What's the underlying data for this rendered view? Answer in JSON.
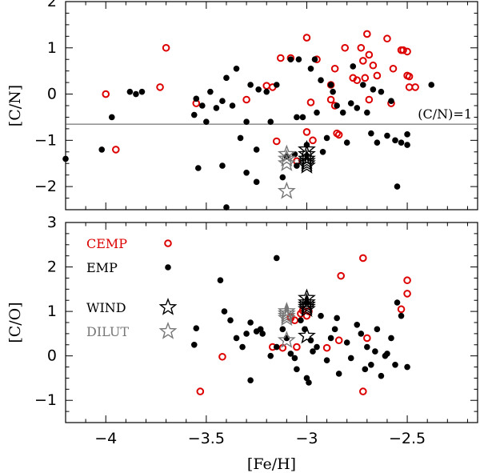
{
  "chart_data": [
    {
      "type": "scatter",
      "panel": "top",
      "ylabel": "[C/N]",
      "xlim": [
        -4.2,
        -2.15
      ],
      "ylim": [
        -2.5,
        2.0
      ],
      "xticks": [
        -4,
        -3.5,
        -3,
        -2.5
      ],
      "yticks": [
        -2,
        -1,
        0,
        1,
        2
      ],
      "ytick_labels": [
        "−2",
        "−1",
        "0",
        "1",
        "2"
      ],
      "reference_line": {
        "y": -0.65,
        "label": "(C/N)=1"
      },
      "series": [
        {
          "name": "CEMP",
          "marker": "open-circle",
          "color": "#dd0000",
          "x": [
            -4.0,
            -3.95,
            -3.7,
            -3.73,
            -3.55,
            -3.3,
            -3.2,
            -3.17,
            -3.13,
            -3.08,
            -3.0,
            -2.98,
            -2.95,
            -2.88,
            -2.86,
            -2.85,
            -2.84,
            -2.81,
            -2.77,
            -2.75,
            -2.73,
            -2.71,
            -2.7,
            -2.69,
            -2.67,
            -2.65,
            -2.6,
            -2.57,
            -2.53,
            -2.52,
            -2.5,
            -2.5,
            -2.49,
            -2.49,
            -2.46,
            -2.97,
            -3.15,
            -2.86,
            -3.05,
            -2.69,
            -2.58,
            -2.88,
            -3.0,
            -2.72
          ],
          "y": [
            0.0,
            -1.2,
            1.0,
            0.15,
            -0.2,
            -0.12,
            0.18,
            0.15,
            0.78,
            0.78,
            1.22,
            -0.18,
            0.75,
            -0.12,
            -0.25,
            -0.85,
            -0.88,
            1.0,
            0.35,
            0.3,
            1.0,
            0.35,
            1.3,
            0.85,
            0.62,
            0.4,
            1.2,
            0.55,
            0.95,
            0.95,
            0.92,
            0.4,
            0.38,
            0.15,
            0.15,
            -1.0,
            -1.02,
            0.55,
            -1.45,
            -0.12,
            -0.2,
            0.2,
            -0.82,
            0.72
          ]
        },
        {
          "name": "EMP",
          "marker": "filled-circle",
          "color": "#000000",
          "x": [
            -4.2,
            -4.02,
            -3.97,
            -3.88,
            -3.85,
            -3.82,
            -3.56,
            -3.55,
            -3.54,
            -3.52,
            -3.5,
            -3.48,
            -3.42,
            -3.42,
            -3.4,
            -3.37,
            -3.35,
            -3.3,
            -3.28,
            -3.25,
            -3.25,
            -3.24,
            -3.18,
            -3.15,
            -3.12,
            -3.1,
            -3.08,
            -3.06,
            -3.05,
            -3.04,
            -3.02,
            -3.0,
            -2.98,
            -2.96,
            -2.95,
            -2.93,
            -2.92,
            -2.9,
            -2.88,
            -2.87,
            -2.85,
            -2.82,
            -2.8,
            -2.78,
            -2.77,
            -2.75,
            -2.72,
            -2.7,
            -2.68,
            -2.67,
            -2.65,
            -2.63,
            -2.6,
            -2.58,
            -2.56,
            -2.55,
            -2.53,
            -2.5,
            -2.5,
            -2.38,
            -3.4,
            -3.33,
            -3.2,
            -3.05,
            -3.3,
            -3.45
          ],
          "y": [
            -1.4,
            -1.2,
            -0.5,
            0.05,
            0.0,
            0.05,
            -0.45,
            -0.1,
            -1.6,
            -0.25,
            -0.6,
            0.05,
            -0.15,
            -1.55,
            -2.45,
            -0.25,
            0.55,
            -0.6,
            0.2,
            -1.2,
            -1.9,
            0.1,
            -0.6,
            0.2,
            -1.8,
            -1.35,
            0.75,
            -1.3,
            -0.5,
            0.75,
            -0.5,
            -1.1,
            0.55,
            0.75,
            -0.4,
            0.3,
            -1.25,
            -0.95,
            0.2,
            0.05,
            -0.25,
            -0.4,
            -1.05,
            -0.2,
            0.6,
            -0.3,
            0.2,
            -0.4,
            -0.85,
            0.1,
            -1.05,
            0.05,
            -0.9,
            -0.15,
            -1.0,
            -2.0,
            -1.05,
            -1.1,
            -0.87,
            0.2,
            0.35,
            -0.95,
            0.05,
            -1.55,
            -1.7,
            -0.3
          ]
        },
        {
          "name": "WIND",
          "marker": "open-star",
          "color": "#000000",
          "x": [
            -3.0,
            -3.0,
            -3.0,
            -3.0,
            -3.0,
            -3.0
          ],
          "y": [
            -1.2,
            -1.3,
            -1.4,
            -1.45,
            -1.5,
            -1.55
          ]
        },
        {
          "name": "DILUT",
          "marker": "open-star",
          "color": "#777777",
          "x": [
            -3.1,
            -3.1,
            -3.1,
            -3.1
          ],
          "y": [
            -1.3,
            -1.4,
            -1.5,
            -2.1
          ]
        }
      ]
    },
    {
      "type": "scatter",
      "panel": "bottom",
      "xlabel": "[Fe/H]",
      "ylabel": "[C/O]",
      "xlim": [
        -4.2,
        -2.15
      ],
      "ylim": [
        -1.5,
        3.0
      ],
      "xticks": [
        -4,
        -3.5,
        -3,
        -2.5
      ],
      "xtick_labels": [
        "−4",
        "−3.5",
        "−3",
        "−2.5"
      ],
      "yticks": [
        -1,
        0,
        1,
        2,
        3
      ],
      "ytick_labels": [
        "−1",
        "0",
        "1",
        "2",
        "3"
      ],
      "series": [
        {
          "name": "CEMP",
          "marker": "open-circle",
          "color": "#dd0000",
          "x": [
            -3.53,
            -3.42,
            -3.17,
            -3.12,
            -3.08,
            -3.08,
            -3.06,
            -3.05,
            -3.03,
            -3.02,
            -3.0,
            -2.99,
            -2.9,
            -2.84,
            -2.83,
            -2.72,
            -2.72,
            -2.7,
            -2.53,
            -2.5,
            -2.5
          ],
          "y": [
            -0.8,
            -0.02,
            0.2,
            0.18,
            0.85,
            0.88,
            0.8,
            0.2,
            0.95,
            1.02,
            0.9,
            1.0,
            0.18,
            0.35,
            1.8,
            2.2,
            -0.8,
            0.4,
            1.05,
            1.4,
            1.7
          ]
        },
        {
          "name": "EMP",
          "marker": "filled-circle",
          "color": "#000000",
          "x": [
            -3.56,
            -3.55,
            -3.43,
            -3.41,
            -3.38,
            -3.35,
            -3.32,
            -3.3,
            -3.28,
            -3.25,
            -3.23,
            -3.22,
            -3.18,
            -3.15,
            -3.12,
            -3.1,
            -3.08,
            -3.06,
            -3.05,
            -3.03,
            -3.01,
            -3.0,
            -2.99,
            -2.97,
            -2.95,
            -2.93,
            -2.9,
            -2.88,
            -2.86,
            -2.85,
            -2.84,
            -2.8,
            -2.78,
            -2.75,
            -2.73,
            -2.71,
            -2.7,
            -2.68,
            -2.66,
            -2.65,
            -2.63,
            -2.61,
            -2.6,
            -2.58,
            -2.56,
            -2.55,
            -2.53,
            -2.5,
            -3.15,
            -2.98,
            -3.28,
            -3.0
          ],
          "y": [
            0.25,
            0.62,
            1.7,
            1.0,
            0.8,
            0.4,
            0.2,
            0.5,
            -0.55,
            0.55,
            0.6,
            0.5,
            0.0,
            2.2,
            0.6,
            0.4,
            0.05,
            -0.05,
            -0.3,
            0.8,
            0.6,
            -0.5,
            -0.6,
            0.1,
            0.2,
            0.9,
            -0.1,
            0.4,
            0.6,
            0.85,
            -0.4,
            0.3,
            -0.05,
            0.7,
            0.5,
            -0.3,
            0.2,
            -0.2,
            0.1,
            0.6,
            -0.45,
            0.0,
            0.05,
            0.4,
            -0.2,
            1.2,
            0.9,
            -0.25,
            0.2,
            0.35,
            0.75,
            1.2
          ]
        },
        {
          "name": "WIND",
          "marker": "open-star",
          "color": "#000000",
          "x": [
            -3.0,
            -3.0,
            -3.0,
            -3.0,
            -3.0,
            -3.0
          ],
          "y": [
            1.3,
            1.2,
            1.15,
            1.1,
            1.05,
            0.45
          ]
        },
        {
          "name": "DILUT",
          "marker": "open-star",
          "color": "#777777",
          "x": [
            -3.1,
            -3.1,
            -3.1,
            -3.1,
            -3.1
          ],
          "y": [
            1.0,
            0.95,
            0.9,
            0.85,
            0.35
          ]
        }
      ],
      "legend": [
        {
          "label": "CEMP",
          "marker": "open-circle",
          "color": "#dd0000"
        },
        {
          "label": "EMP",
          "marker": "filled-circle",
          "color": "#000000"
        },
        {
          "label": "WIND",
          "marker": "open-star",
          "color": "#000000"
        },
        {
          "label": "DILUT",
          "marker": "open-star",
          "color": "#777777"
        }
      ]
    }
  ]
}
